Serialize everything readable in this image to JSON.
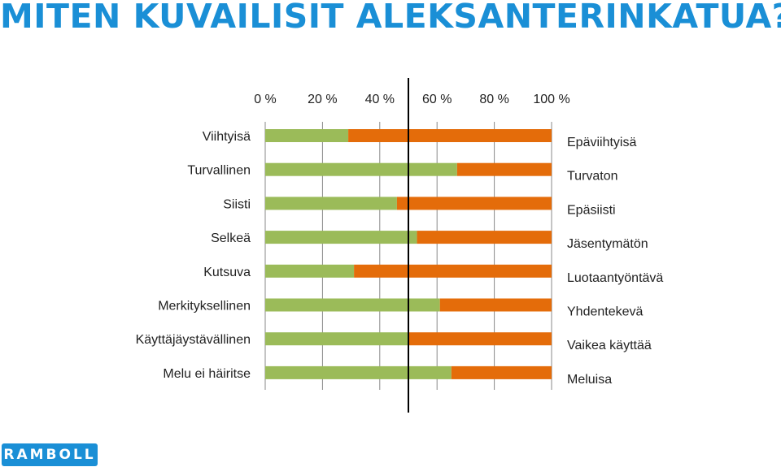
{
  "title": "MITEN KUVAILISIT ALEKSANTERINKATUA?",
  "logo_text": "RAMBOLL",
  "colors": {
    "title": "#1a8fd6",
    "positive": "#9bbb59",
    "negative": "#e46c0a",
    "grid": "#888888",
    "midline": "#000000",
    "logo": "#1a8fd6"
  },
  "chart_data": {
    "type": "bar",
    "orientation": "horizontal",
    "stacked": true,
    "normalized_100": true,
    "x_ticks": [
      "0 %",
      "20 %",
      "40 %",
      "60 %",
      "80 %",
      "100 %"
    ],
    "xlim": [
      0,
      100
    ],
    "grid": true,
    "midline_at": 50,
    "categories_left": [
      "Viihtyisä",
      "Turvallinen",
      "Siisti",
      "Selkeä",
      "Kutsuva",
      "Merkityksellinen",
      "Käyttäjäystävällinen",
      "Melu ei häiritse"
    ],
    "categories_right": [
      "Epäviihtyisä",
      "Turvaton",
      "Epäsiisti",
      "Jäsentymätön",
      "Luotaantyöntävä",
      "Yhdentekevä",
      "Vaikea käyttää",
      "Meluisa"
    ],
    "series": [
      {
        "values": [
          29,
          67,
          46,
          53,
          31,
          61,
          50,
          65
        ]
      },
      {
        "values": [
          71,
          33,
          54,
          47,
          69,
          39,
          50,
          35
        ]
      }
    ]
  }
}
